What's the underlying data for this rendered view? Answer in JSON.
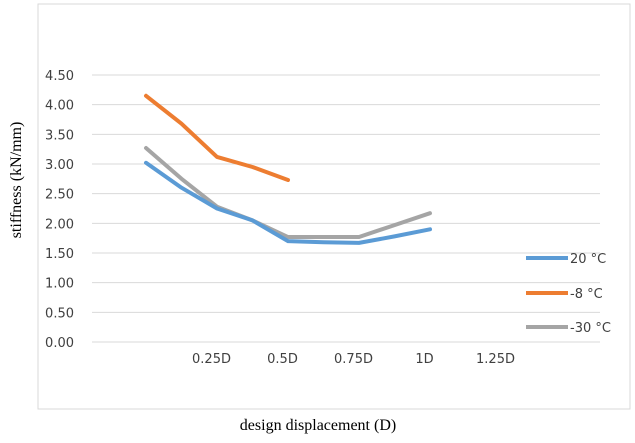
{
  "chart_data": {
    "type": "line",
    "title": "",
    "xlabel": "design displacement (D)",
    "ylabel": "stiffness (kN/mm)",
    "categories": [
      "",
      "0.25D",
      "0.5D",
      "0.75D",
      "1D",
      "1.25D",
      ""
    ],
    "ylim": [
      0,
      4.5
    ],
    "yticks": [
      "0.00",
      "0.50",
      "1.00",
      "1.50",
      "2.00",
      "2.50",
      "3.00",
      "3.50",
      "4.00",
      "4.50"
    ],
    "grid": true,
    "legend_position": "right",
    "series": [
      {
        "name": "20 °C",
        "color": "#5B9BD5",
        "points": [
          {
            "x": 0.0,
            "y": 3.02
          },
          {
            "x": 0.5,
            "y": 2.6
          },
          {
            "x": 1.0,
            "y": 2.25
          },
          {
            "x": 1.5,
            "y": 2.05
          },
          {
            "x": 2.0,
            "y": 1.7
          },
          {
            "x": 2.5,
            "y": 1.68
          },
          {
            "x": 3.0,
            "y": 1.67
          },
          {
            "x": 3.5,
            "y": 1.78
          },
          {
            "x": 4.0,
            "y": 1.9
          }
        ]
      },
      {
        "name": "-8 °C",
        "color": "#ED7D31",
        "points": [
          {
            "x": 0.0,
            "y": 4.15
          },
          {
            "x": 0.5,
            "y": 3.68
          },
          {
            "x": 1.0,
            "y": 3.12
          },
          {
            "x": 1.5,
            "y": 2.95
          },
          {
            "x": 2.0,
            "y": 2.73
          }
        ]
      },
      {
        "name": "-30 °C",
        "color": "#A5A5A5",
        "points": [
          {
            "x": 0.0,
            "y": 3.27
          },
          {
            "x": 0.5,
            "y": 2.75
          },
          {
            "x": 1.0,
            "y": 2.28
          },
          {
            "x": 1.5,
            "y": 2.05
          },
          {
            "x": 2.0,
            "y": 1.77
          },
          {
            "x": 2.5,
            "y": 1.77
          },
          {
            "x": 3.0,
            "y": 1.77
          },
          {
            "x": 3.5,
            "y": 1.97
          },
          {
            "x": 4.0,
            "y": 2.17
          }
        ]
      }
    ]
  }
}
